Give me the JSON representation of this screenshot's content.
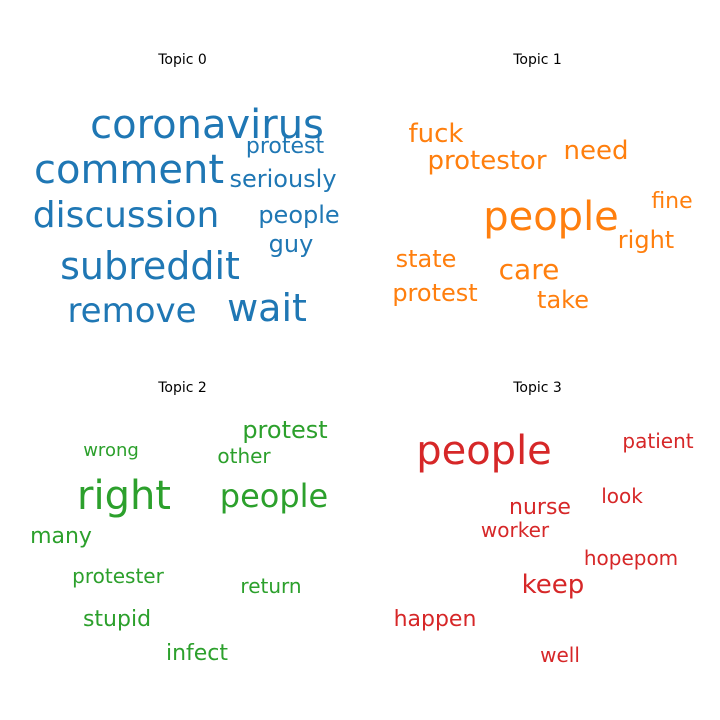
{
  "chart_data": [
    {
      "type": "wordcloud",
      "title": "Topic 0",
      "color": "#1f77b4",
      "words": [
        {
          "text": "coronavirus",
          "weight": 1.0
        },
        {
          "text": "comment",
          "weight": 0.93
        },
        {
          "text": "discussion",
          "weight": 0.88
        },
        {
          "text": "subreddit",
          "weight": 0.9
        },
        {
          "text": "remove",
          "weight": 0.78
        },
        {
          "text": "wait",
          "weight": 0.85
        },
        {
          "text": "protest",
          "weight": 0.52
        },
        {
          "text": "seriously",
          "weight": 0.57
        },
        {
          "text": "people",
          "weight": 0.55
        },
        {
          "text": "guy",
          "weight": 0.54
        }
      ]
    },
    {
      "type": "wordcloud",
      "title": "Topic 1",
      "color": "#ff7f0e",
      "words": [
        {
          "text": "people",
          "weight": 1.0
        },
        {
          "text": "fuck",
          "weight": 0.62
        },
        {
          "text": "need",
          "weight": 0.65
        },
        {
          "text": "protestor",
          "weight": 0.65
        },
        {
          "text": "fine",
          "weight": 0.57
        },
        {
          "text": "right",
          "weight": 0.57
        },
        {
          "text": "state",
          "weight": 0.57
        },
        {
          "text": "care",
          "weight": 0.7
        },
        {
          "text": "protest",
          "weight": 0.6
        },
        {
          "text": "take",
          "weight": 0.57
        }
      ]
    },
    {
      "type": "wordcloud",
      "title": "Topic 2",
      "color": "#2ca02c",
      "words": [
        {
          "text": "right",
          "weight": 1.0
        },
        {
          "text": "people",
          "weight": 0.78
        },
        {
          "text": "protest",
          "weight": 0.62
        },
        {
          "text": "wrong",
          "weight": 0.47
        },
        {
          "text": "other",
          "weight": 0.53
        },
        {
          "text": "many",
          "weight": 0.58
        },
        {
          "text": "protester",
          "weight": 0.53
        },
        {
          "text": "return",
          "weight": 0.53
        },
        {
          "text": "stupid",
          "weight": 0.58
        },
        {
          "text": "infect",
          "weight": 0.58
        }
      ]
    },
    {
      "type": "wordcloud",
      "title": "Topic 3",
      "color": "#d62728",
      "words": [
        {
          "text": "people",
          "weight": 1.0
        },
        {
          "text": "patient",
          "weight": 0.55
        },
        {
          "text": "look",
          "weight": 0.55
        },
        {
          "text": "nurse",
          "weight": 0.57
        },
        {
          "text": "worker",
          "weight": 0.52
        },
        {
          "text": "hopepom",
          "weight": 0.52
        },
        {
          "text": "keep",
          "weight": 0.68
        },
        {
          "text": "happen",
          "weight": 0.57
        },
        {
          "text": "well",
          "weight": 0.55
        }
      ]
    }
  ]
}
